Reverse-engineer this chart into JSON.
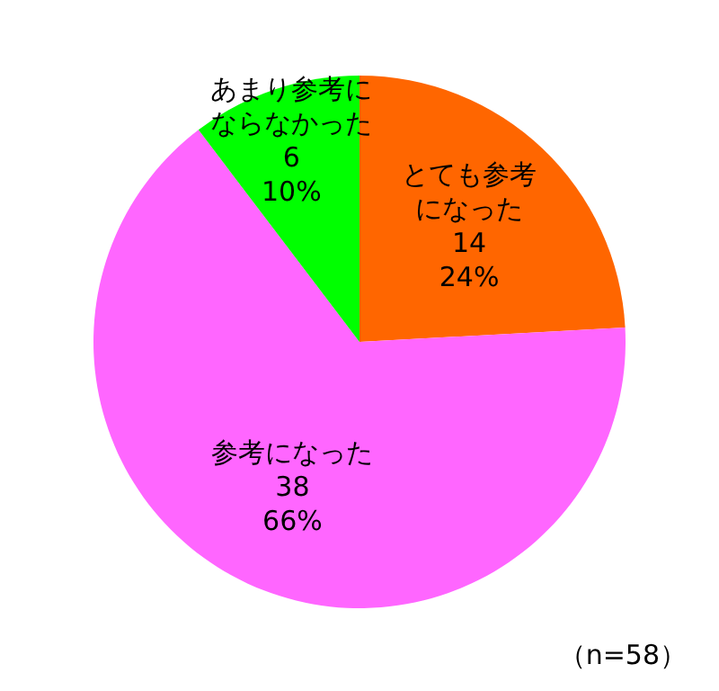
{
  "chart_data": {
    "type": "pie",
    "categories": [
      "とても参考になった",
      "参考になった",
      "あまり参考にならなかった"
    ],
    "values": [
      14,
      38,
      6
    ],
    "value_labels": [
      "14\n24%",
      "38\n66%",
      "6\n10%"
    ],
    "colors": [
      "#ff6600",
      "#ff66ff",
      "#00ff00"
    ],
    "annotations": [
      "（n=58）"
    ]
  }
}
